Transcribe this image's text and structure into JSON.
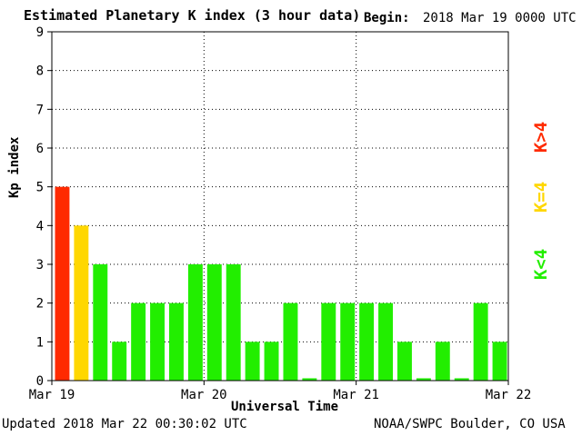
{
  "chart_data": {
    "type": "bar",
    "title": "Estimated Planetary K index (3 hour data)",
    "begin_label": "Begin:",
    "begin_value": "2018 Mar 19 0000 UTC",
    "ylabel": "Kp index",
    "xlabel": "Universal Time",
    "ylim": [
      0,
      9
    ],
    "yticks": [
      "0",
      "1",
      "2",
      "3",
      "4",
      "5",
      "6",
      "7",
      "8",
      "9"
    ],
    "xtick_labels": [
      "Mar 19",
      "Mar 20",
      "Mar 21",
      "Mar 22"
    ],
    "values": [
      5,
      4,
      3,
      1,
      2,
      2,
      2,
      3,
      3,
      3,
      1,
      1,
      2,
      0,
      2,
      2,
      2,
      2,
      1,
      0,
      1,
      0,
      2,
      1
    ],
    "grid": true,
    "legend": [
      {
        "label": "K>4",
        "color": "#ff2a00"
      },
      {
        "label": "K=4",
        "color": "#ffd700"
      },
      {
        "label": "K<4",
        "color": "#22ee00"
      }
    ],
    "colors": {
      "high": "#ff2a00",
      "equal": "#ffd700",
      "low": "#22ee00"
    }
  },
  "footer": {
    "updated": "Updated 2018 Mar 22 00:30:02 UTC",
    "credit": "NOAA/SWPC Boulder, CO USA"
  }
}
